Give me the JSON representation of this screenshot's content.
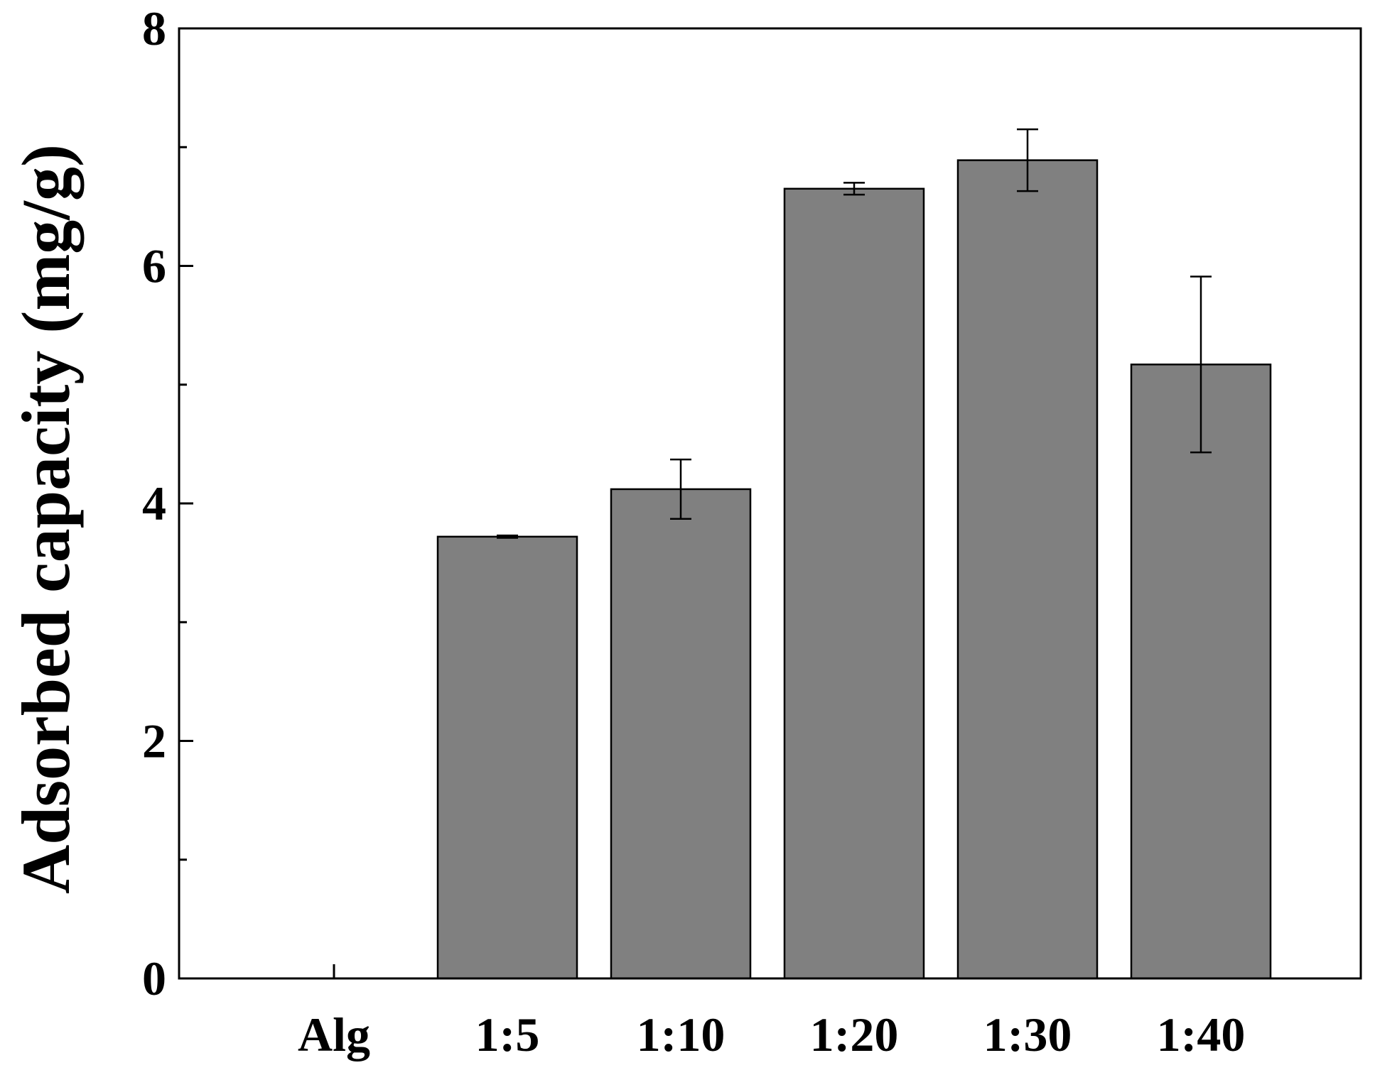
{
  "chart_data": {
    "type": "bar",
    "title": "",
    "xlabel": "",
    "ylabel": "Adsorbed capacity (mg/g)",
    "ylim": [
      0,
      8
    ],
    "yticks": [
      0,
      2,
      4,
      6,
      8
    ],
    "y_minor_ticks": [
      1,
      3,
      5,
      7
    ],
    "grid": false,
    "legend": "none",
    "categories": [
      "Alg",
      "1:5",
      "1:10",
      "1:20",
      "1:30",
      "1:40"
    ],
    "values": [
      0,
      3.72,
      4.12,
      6.65,
      6.89,
      5.17
    ],
    "errors": [
      0,
      0.01,
      0.25,
      0.05,
      0.26,
      0.74
    ],
    "colors": {
      "bar": "#808080",
      "outline": "#000000"
    }
  }
}
